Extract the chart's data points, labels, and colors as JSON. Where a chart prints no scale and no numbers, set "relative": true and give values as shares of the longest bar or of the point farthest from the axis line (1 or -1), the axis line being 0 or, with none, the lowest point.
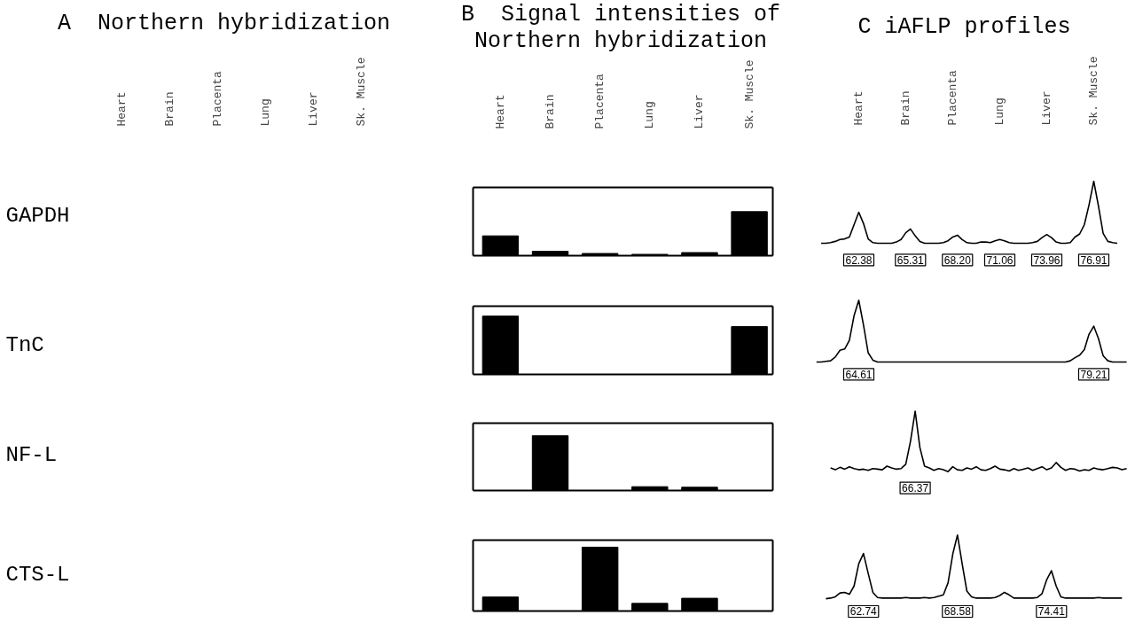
{
  "chart_data": [
    {
      "type": "other",
      "title": "A  Northern hybridization",
      "categories": [
        "Heart",
        "Brain",
        "Placenta",
        "Lung",
        "Liver",
        "Sk. Muscle"
      ],
      "annotations": [
        "GAPDH",
        "TnC",
        "NF-L",
        "CTS-L"
      ]
    },
    {
      "type": "bar",
      "title": "B  Signal intensities of Northern hybridization",
      "categories": [
        "Heart",
        "Brain",
        "Placenta",
        "Lung",
        "Liver",
        "Sk. Muscle"
      ],
      "values": [
        0.45,
        0.1,
        0.05,
        0.03,
        0.07,
        1
      ],
      "relative": true,
      "color": "#000000"
    },
    {
      "type": "bar",
      "categories": [
        null,
        null,
        null,
        null,
        null,
        null
      ],
      "values": [
        1,
        0,
        0,
        0,
        0,
        0.82
      ],
      "relative": true,
      "color": "#000000"
    },
    {
      "type": "bar",
      "categories": [
        null,
        null,
        null,
        null,
        null,
        null
      ],
      "values": [
        0,
        1,
        0,
        0.07,
        0.06,
        0
      ],
      "relative": true,
      "color": "#000000"
    },
    {
      "type": "bar",
      "categories": [
        null,
        null,
        null,
        null,
        null,
        null
      ],
      "values": [
        0.22,
        0,
        1,
        0.12,
        0.2,
        0
      ],
      "relative": true,
      "color": "#000000"
    },
    {
      "type": "line",
      "title": "C iAFLP profiles",
      "relative": true,
      "color": "#000000",
      "categories": [
        null,
        null,
        null,
        null,
        null,
        null,
        null,
        null,
        null,
        null,
        "Heart",
        null,
        null,
        null,
        null,
        null,
        null,
        null,
        null,
        null,
        "Brain",
        null,
        null,
        null,
        null,
        null,
        null,
        null,
        null,
        null,
        "Placenta",
        null,
        null,
        null,
        null,
        null,
        null,
        null,
        null,
        null,
        "Lung",
        null,
        null,
        null,
        null,
        null,
        null,
        null,
        null,
        null,
        "Liver",
        null,
        null,
        null,
        null,
        null,
        null,
        null,
        null,
        null,
        "Sk. Muscle",
        null,
        null,
        null,
        null,
        null,
        null,
        null
      ],
      "values": [
        null,
        null,
        0,
        0,
        0.01,
        0.03,
        0.06,
        0.07,
        0.1,
        0.3,
        0.5,
        0.32,
        0.07,
        0.01,
        0,
        0,
        0,
        0,
        0.02,
        0.06,
        0.17,
        0.23,
        0.12,
        0.03,
        0,
        0,
        0,
        0,
        0.01,
        0.04,
        0.1,
        0.13,
        0.06,
        0.01,
        0,
        0,
        0.02,
        0.02,
        0.01,
        0.04,
        0.06,
        0.04,
        0.01,
        0,
        0,
        0,
        0,
        0.01,
        0.03,
        0.09,
        0.14,
        0.09,
        0.02,
        0,
        0,
        0.01,
        0.1,
        0.15,
        0.3,
        0.62,
        1,
        0.6,
        0.16,
        0.03,
        0.01,
        0,
        null,
        null
      ],
      "annotations": [
        "62.38",
        "65.31",
        "68.20",
        "71.06",
        "73.96",
        "76.91"
      ]
    },
    {
      "type": "line",
      "relative": true,
      "color": "#000000",
      "categories": [
        null,
        null,
        null,
        null,
        null,
        null,
        null,
        null,
        null,
        null,
        null,
        null,
        null,
        null,
        null,
        null,
        null,
        null,
        null,
        null,
        null,
        null,
        null,
        null,
        null,
        null,
        null,
        null,
        null,
        null,
        null,
        null,
        null,
        null,
        null,
        null,
        null,
        null,
        null,
        null,
        null,
        null,
        null,
        null,
        null,
        null,
        null,
        null,
        null,
        null,
        null,
        null,
        null,
        null,
        null,
        null,
        null,
        null,
        null,
        null,
        null,
        null,
        null,
        null,
        null,
        null,
        null,
        null
      ],
      "values": [
        null,
        0,
        0,
        0.01,
        0.02,
        0.08,
        0.19,
        0.21,
        0.35,
        0.75,
        1,
        0.6,
        0.15,
        0.03,
        0,
        0,
        0,
        0,
        0,
        0,
        0,
        0,
        0,
        0,
        0,
        0,
        0,
        0,
        0,
        0,
        0,
        0,
        0,
        0,
        0,
        0,
        0,
        0,
        0,
        0,
        0,
        0,
        0,
        0,
        0,
        0,
        0,
        0,
        0,
        0,
        0,
        0,
        0,
        0,
        0,
        0.02,
        0.07,
        0.11,
        0.2,
        0.45,
        0.58,
        0.38,
        0.1,
        0.02,
        0,
        0,
        0,
        0
      ],
      "annotations": [
        "64.61",
        "79.21"
      ]
    },
    {
      "type": "line",
      "relative": true,
      "color": "#000000",
      "categories": [
        null,
        null,
        null,
        null,
        null,
        null,
        null,
        null,
        null,
        null,
        null,
        null,
        null,
        null,
        null,
        null,
        null,
        null,
        null,
        null,
        null,
        null,
        null,
        null,
        null,
        null,
        null,
        null,
        null,
        null,
        null,
        null,
        null,
        null,
        null,
        null,
        null,
        null,
        null,
        null,
        null,
        null,
        null,
        null,
        null,
        null,
        null,
        null,
        null,
        null,
        null,
        null,
        null,
        null,
        null,
        null,
        null,
        null,
        null,
        null,
        null,
        null,
        null,
        null,
        null,
        null,
        null,
        null
      ],
      "values": [
        null,
        null,
        null,
        null,
        0.06,
        0.03,
        0.07,
        0.04,
        0.08,
        0.05,
        0.03,
        0.04,
        0.02,
        0.05,
        0.04,
        0.03,
        0.09,
        0.06,
        0.04,
        0.05,
        0.12,
        0.5,
        1,
        0.4,
        0.09,
        0.06,
        0.02,
        0.05,
        0.03,
        0,
        0.08,
        0.03,
        0.02,
        0.06,
        0.04,
        0.08,
        0.03,
        0.02,
        0.05,
        0.09,
        0.04,
        0.03,
        0.01,
        0.05,
        0.02,
        0.04,
        0.06,
        0.02,
        0.05,
        0.08,
        0.03,
        0.06,
        0.15,
        0.07,
        0.02,
        0.05,
        0.04,
        0.01,
        0.03,
        0.02,
        0.06,
        0.04,
        0.03,
        0.05,
        0.07,
        0.06,
        0.03,
        0.05
      ],
      "annotations": [
        "66.37"
      ]
    },
    {
      "type": "line",
      "relative": true,
      "color": "#000000",
      "categories": [
        null,
        null,
        null,
        null,
        null,
        null,
        null,
        null,
        null,
        null,
        null,
        null,
        null,
        null,
        null,
        null,
        null,
        null,
        null,
        null,
        null,
        null,
        null,
        null,
        null,
        null,
        null,
        null,
        null,
        null,
        null,
        null,
        null,
        null,
        null,
        null,
        null,
        null,
        null,
        null,
        null,
        null,
        null,
        null,
        null,
        null,
        null,
        null,
        null,
        null,
        null,
        null,
        null,
        null,
        null,
        null,
        null,
        null,
        null,
        null,
        null,
        null,
        null,
        null,
        null,
        null,
        null,
        null
      ],
      "values": [
        null,
        null,
        null,
        0,
        0.01,
        0.03,
        0.09,
        0.1,
        0.07,
        0.2,
        0.55,
        0.71,
        0.4,
        0.1,
        0.02,
        0.01,
        0.01,
        0.01,
        0.01,
        0.01,
        0.02,
        0.01,
        0.01,
        0.01,
        0.02,
        0.01,
        0.02,
        0.04,
        0.06,
        0.25,
        0.7,
        1,
        0.55,
        0.12,
        0.03,
        0.01,
        0.01,
        0.01,
        0.01,
        0.02,
        0.05,
        0.1,
        0.06,
        0.01,
        0.01,
        0.01,
        0.01,
        0.01,
        0.02,
        0.08,
        0.3,
        0.44,
        0.2,
        0.03,
        0.01,
        0.01,
        0.01,
        0.01,
        0.01,
        0.01,
        0.01,
        0.02,
        0.01,
        0.01,
        0.01,
        0.01,
        0.01,
        null
      ],
      "annotations": [
        "62.74",
        "68.58",
        "74.41"
      ]
    }
  ]
}
